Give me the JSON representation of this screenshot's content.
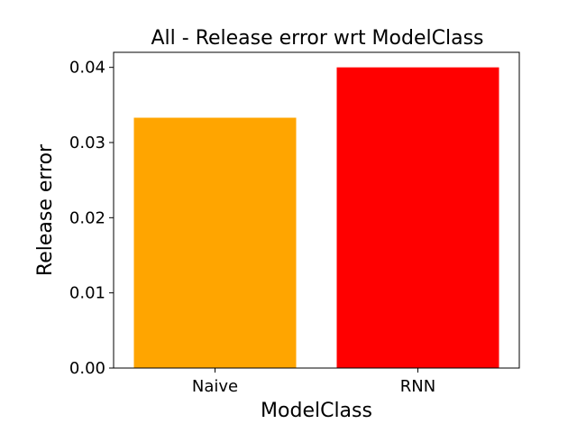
{
  "chart_data": {
    "type": "bar",
    "title": "All - Release error wrt ModelClass",
    "xlabel": "ModelClass",
    "ylabel": "Release error",
    "categories": [
      "Naive",
      "RNN"
    ],
    "values": [
      0.0333,
      0.04
    ],
    "colors": [
      "#ffa500",
      "#ff0000"
    ],
    "ylim": [
      0,
      0.042
    ],
    "yticks": [
      0.0,
      0.01,
      0.02,
      0.03,
      0.04
    ],
    "ytick_labels": [
      "0.00",
      "0.01",
      "0.02",
      "0.03",
      "0.04"
    ],
    "grid": false,
    "legend": "none"
  }
}
